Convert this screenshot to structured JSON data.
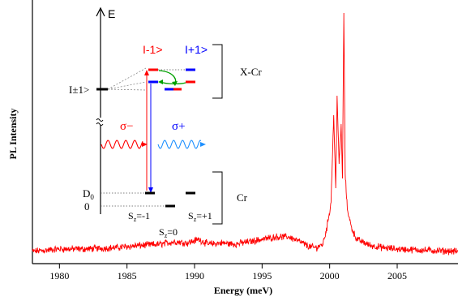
{
  "chart_data": {
    "type": "line",
    "xlabel": "Energy (meV)",
    "ylabel": "PL Intensity",
    "xlim": [
      1978,
      2009.5
    ],
    "xticks": [
      1980,
      1985,
      1990,
      1995,
      2000,
      2005
    ],
    "y_ticks_shown": false,
    "grid": false,
    "series": [
      {
        "color": "#ff0000",
        "x": [
          1978,
          1980,
          1982,
          1984,
          1986,
          1987.5,
          1988.5,
          1989.5,
          1990.3,
          1991,
          1992,
          1993,
          1994,
          1995,
          1996,
          1997,
          1997.8,
          1998.5,
          1999,
          1999.5,
          1999.8,
          2000.1,
          2000.3,
          2000.45,
          2000.55,
          2000.7,
          2000.85,
          2000.95,
          2001.05,
          2001.15,
          2001.3,
          2001.6,
          2002,
          2003,
          2004,
          2005,
          2007,
          2009.5
        ],
        "y": [
          0.02,
          0.03,
          0.03,
          0.035,
          0.045,
          0.05,
          0.06,
          0.055,
          0.07,
          0.05,
          0.055,
          0.05,
          0.06,
          0.07,
          0.08,
          0.08,
          0.06,
          0.04,
          0.035,
          0.05,
          0.12,
          0.22,
          0.58,
          0.28,
          0.66,
          0.38,
          0.54,
          0.32,
          1.0,
          0.34,
          0.2,
          0.12,
          0.07,
          0.045,
          0.035,
          0.03,
          0.025,
          0.02
        ]
      }
    ]
  },
  "inset": {
    "energy_axis_label": "E",
    "state_x_cr_label": "I±1>",
    "state_minus_label": "I-1>",
    "state_plus_label": "I+1>",
    "sigma_minus_label": "σ−",
    "sigma_plus_label": "σ+",
    "xcr_group_label": "X-Cr",
    "cr_group_label": "Cr",
    "d0_label": "D",
    "d0_sub": "0",
    "zero_label": "0",
    "sz_minus_label": "=-1",
    "sz_zero_label": "=0",
    "sz_plus_label": "=+1",
    "s_char": "S",
    "z_sub": "z",
    "colors": {
      "minus": "#ff0000",
      "plus": "#0000ff",
      "green_arrow": "#00a000"
    }
  }
}
